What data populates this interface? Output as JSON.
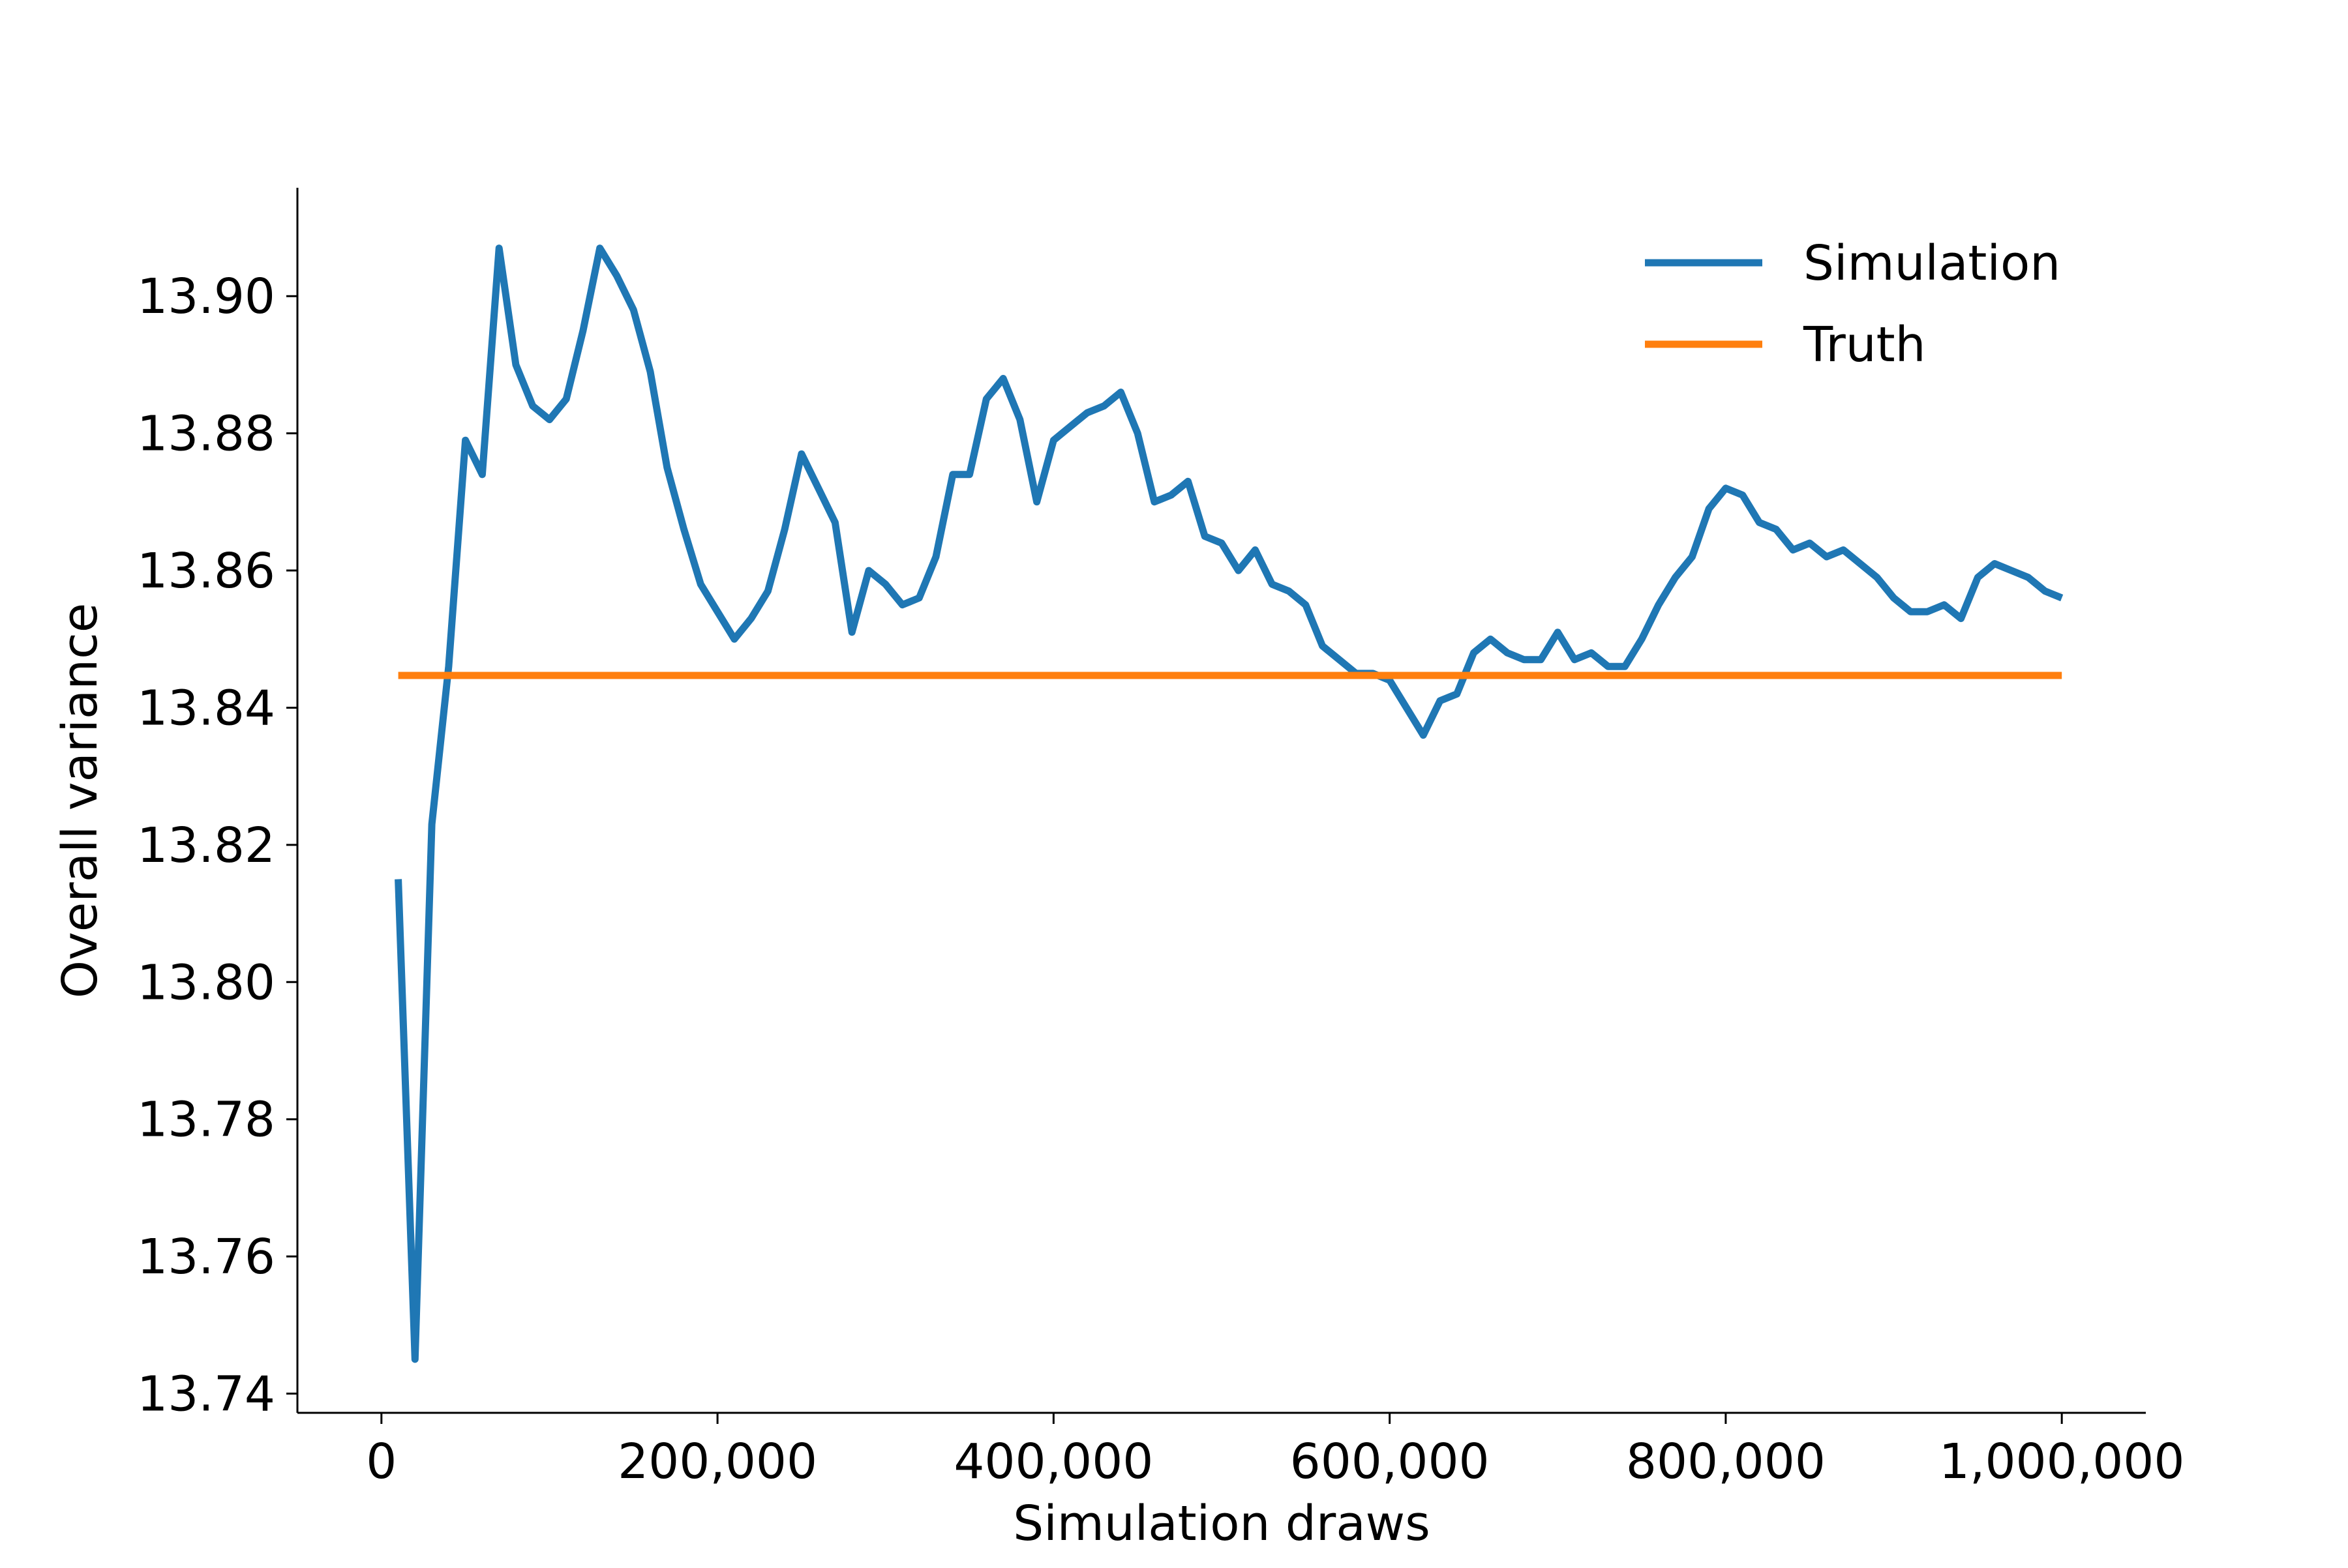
{
  "chart_data": {
    "type": "line",
    "title": "",
    "xlabel": "Simulation draws",
    "ylabel": "Overall variance",
    "xlim": [
      -50000,
      1050000
    ],
    "ylim": [
      13.7372,
      13.9158
    ],
    "x_ticks": [
      0,
      200000,
      400000,
      600000,
      800000,
      1000000
    ],
    "x_tick_labels": [
      "0",
      "200,000",
      "400,000",
      "600,000",
      "800,000",
      "1,000,000"
    ],
    "y_ticks": [
      13.74,
      13.76,
      13.78,
      13.8,
      13.82,
      13.84,
      13.86,
      13.88,
      13.9
    ],
    "y_tick_labels": [
      "13.74",
      "13.76",
      "13.78",
      "13.80",
      "13.82",
      "13.84",
      "13.86",
      "13.88",
      "13.90"
    ],
    "grid": false,
    "legend_position": "top-right",
    "series": [
      {
        "name": "Simulation",
        "color": "#1f77b4",
        "x": [
          10000,
          20000,
          30000,
          40000,
          50000,
          60000,
          70000,
          80000,
          90000,
          100000,
          110000,
          120000,
          130000,
          140000,
          150000,
          160000,
          170000,
          180000,
          190000,
          200000,
          210000,
          220000,
          230000,
          240000,
          250000,
          260000,
          270000,
          280000,
          290000,
          300000,
          310000,
          320000,
          330000,
          340000,
          350000,
          360000,
          370000,
          380000,
          390000,
          400000,
          410000,
          420000,
          430000,
          440000,
          450000,
          460000,
          470000,
          480000,
          490000,
          500000,
          510000,
          520000,
          530000,
          540000,
          550000,
          560000,
          570000,
          580000,
          590000,
          600000,
          610000,
          620000,
          630000,
          640000,
          650000,
          660000,
          670000,
          680000,
          690000,
          700000,
          710000,
          720000,
          730000,
          740000,
          750000,
          760000,
          770000,
          780000,
          790000,
          800000,
          810000,
          820000,
          830000,
          840000,
          850000,
          860000,
          870000,
          880000,
          890000,
          900000,
          910000,
          920000,
          930000,
          940000,
          950000,
          960000,
          970000,
          980000,
          990000,
          1000000
        ],
        "y": [
          13.815,
          13.745,
          13.823,
          13.846,
          13.879,
          13.874,
          13.907,
          13.89,
          13.884,
          13.882,
          13.885,
          13.895,
          13.907,
          13.903,
          13.898,
          13.889,
          13.875,
          13.866,
          13.858,
          13.854,
          13.85,
          13.853,
          13.857,
          13.866,
          13.877,
          13.872,
          13.867,
          13.851,
          13.86,
          13.858,
          13.855,
          13.856,
          13.862,
          13.874,
          13.874,
          13.885,
          13.888,
          13.882,
          13.87,
          13.879,
          13.881,
          13.883,
          13.884,
          13.886,
          13.88,
          13.87,
          13.871,
          13.873,
          13.865,
          13.864,
          13.86,
          13.863,
          13.858,
          13.857,
          13.855,
          13.849,
          13.847,
          13.845,
          13.845,
          13.844,
          13.84,
          13.836,
          13.841,
          13.842,
          13.848,
          13.85,
          13.848,
          13.847,
          13.847,
          13.851,
          13.847,
          13.848,
          13.846,
          13.846,
          13.85,
          13.855,
          13.859,
          13.862,
          13.869,
          13.872,
          13.871,
          13.867,
          13.866,
          13.863,
          13.864,
          13.862,
          13.863,
          13.861,
          13.859,
          13.856,
          13.854,
          13.854,
          13.855,
          13.853,
          13.859,
          13.861,
          13.86,
          13.859,
          13.857,
          13.856
        ]
      },
      {
        "name": "Truth",
        "color": "#ff7f0e",
        "x": [
          10000,
          1000000
        ],
        "y": [
          13.8447,
          13.8447
        ]
      }
    ]
  }
}
